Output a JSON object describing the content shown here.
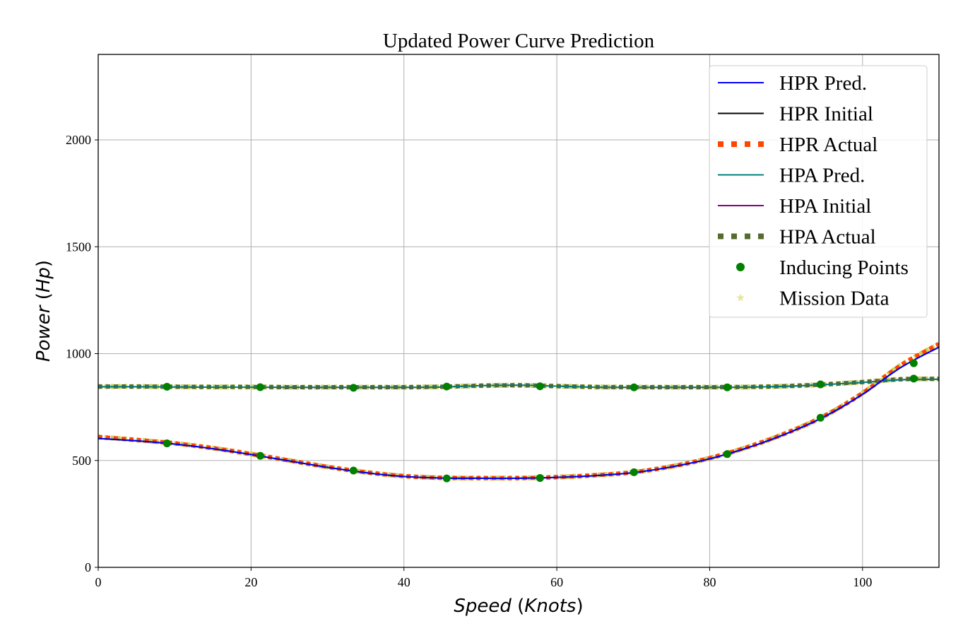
{
  "chart_data": {
    "type": "line",
    "title": "Updated Power Curve Prediction",
    "xlabel": "Speed (Knots)",
    "xlabel_parts": [
      "Speed",
      " (",
      "Knots",
      ")"
    ],
    "ylabel": "Power (Hp)",
    "ylabel_parts": [
      "Power",
      " (",
      "Hp",
      ")"
    ],
    "xlim": [
      0,
      110
    ],
    "ylim": [
      0,
      2400
    ],
    "xticks": [
      0,
      20,
      40,
      60,
      80,
      100
    ],
    "yticks": [
      0,
      500,
      1000,
      1500,
      2000
    ],
    "grid": true,
    "legend_position": "top-right",
    "x": [
      0,
      5,
      10,
      15,
      20,
      25,
      30,
      35,
      40,
      45,
      50,
      55,
      60,
      65,
      70,
      75,
      80,
      85,
      90,
      95,
      100,
      105,
      110
    ],
    "series": [
      {
        "name": "HPR Pred.",
        "style": "solid",
        "color": "#0000ff",
        "values": [
          603,
          592,
          577,
          555,
          528,
          498,
          468,
          443,
          425,
          418,
          417,
          417,
          421,
          429,
          443,
          470,
          508,
          560,
          625,
          705,
          810,
          935,
          1030
        ]
      },
      {
        "name": "HPR Initial",
        "style": "solid",
        "color": "#000000",
        "values": [
          603,
          592,
          577,
          555,
          528,
          498,
          468,
          443,
          425,
          418,
          417,
          417,
          421,
          429,
          443,
          470,
          508,
          560,
          625,
          705,
          810,
          935,
          1030
        ]
      },
      {
        "name": "HPR Actual",
        "style": "dotted",
        "color": "#ff4500",
        "values": [
          610,
          596,
          580,
          558,
          530,
          500,
          470,
          445,
          427,
          419,
          418,
          418,
          422,
          431,
          445,
          472,
          511,
          563,
          628,
          708,
          815,
          945,
          1045
        ]
      },
      {
        "name": "HPA Pred.",
        "style": "solid",
        "color": "#008080",
        "values": [
          845,
          845,
          844,
          843,
          843,
          842,
          842,
          842,
          842,
          844,
          850,
          852,
          848,
          843,
          842,
          842,
          842,
          843,
          847,
          855,
          865,
          878,
          880
        ]
      },
      {
        "name": "HPA Initial",
        "style": "solid",
        "color": "#800080",
        "values": [
          845,
          845,
          844,
          843,
          843,
          842,
          842,
          842,
          842,
          844,
          850,
          852,
          848,
          843,
          842,
          842,
          842,
          843,
          847,
          855,
          865,
          878,
          880
        ]
      },
      {
        "name": "HPA Actual",
        "style": "dotted",
        "color": "#556b2f",
        "values": [
          846,
          846,
          845,
          844,
          844,
          843,
          843,
          843,
          843,
          845,
          850,
          852,
          848,
          844,
          843,
          843,
          843,
          844,
          848,
          856,
          867,
          880,
          882
        ]
      }
    ],
    "inducing_points": {
      "name": "Inducing Points",
      "color": "#008000",
      "points": [
        {
          "x": 9,
          "y": 580
        },
        {
          "x": 21.2,
          "y": 522
        },
        {
          "x": 33.4,
          "y": 453
        },
        {
          "x": 45.6,
          "y": 416
        },
        {
          "x": 57.8,
          "y": 418
        },
        {
          "x": 70.1,
          "y": 445
        },
        {
          "x": 82.3,
          "y": 530
        },
        {
          "x": 94.5,
          "y": 700
        },
        {
          "x": 106.7,
          "y": 955
        },
        {
          "x": 9,
          "y": 845
        },
        {
          "x": 21.2,
          "y": 843
        },
        {
          "x": 33.4,
          "y": 840
        },
        {
          "x": 45.6,
          "y": 846
        },
        {
          "x": 57.8,
          "y": 847
        },
        {
          "x": 70.1,
          "y": 842
        },
        {
          "x": 82.3,
          "y": 842
        },
        {
          "x": 94.5,
          "y": 856
        },
        {
          "x": 106.7,
          "y": 883
        }
      ]
    },
    "mission_data": {
      "name": "Mission Data",
      "color": "#c8c832"
    },
    "legend": [
      {
        "label": "HPR Pred.",
        "kind": "line",
        "color": "#0000ff"
      },
      {
        "label": "HPR Initial",
        "kind": "line",
        "color": "#000000"
      },
      {
        "label": "HPR Actual",
        "kind": "dotted",
        "color": "#ff4500"
      },
      {
        "label": "HPA Pred.",
        "kind": "line",
        "color": "#008080"
      },
      {
        "label": "HPA Initial",
        "kind": "line",
        "color": "#800080"
      },
      {
        "label": "HPA Actual",
        "kind": "dotted",
        "color": "#556b2f"
      },
      {
        "label": "Inducing Points",
        "kind": "dot",
        "color": "#008000"
      },
      {
        "label": "Mission Data",
        "kind": "star",
        "color": "#e6e6a0"
      }
    ]
  }
}
